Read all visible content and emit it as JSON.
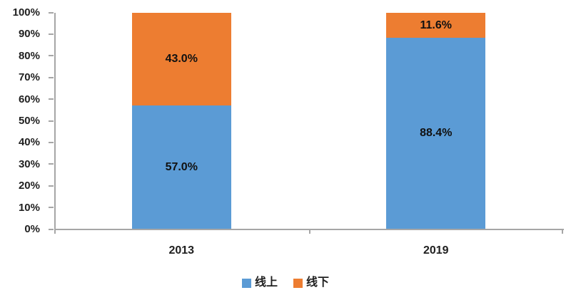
{
  "chart_data": {
    "type": "bar",
    "stacked": true,
    "title": "",
    "xlabel": "",
    "ylabel": "",
    "categories": [
      "2013",
      "2019"
    ],
    "series": [
      {
        "name": "线上",
        "color": "#5B9BD5",
        "values": [
          57.0,
          88.4
        ],
        "labels": [
          "57.0%",
          "88.4%"
        ]
      },
      {
        "name": "线下",
        "color": "#ED7D31",
        "values": [
          43.0,
          11.6
        ],
        "labels": [
          "43.0%",
          "11.6%"
        ]
      }
    ],
    "ylim": [
      0,
      100
    ],
    "ytick_step": 10,
    "ytick_labels": [
      "0%",
      "10%",
      "20%",
      "30%",
      "40%",
      "50%",
      "60%",
      "70%",
      "80%",
      "90%",
      "100%"
    ],
    "grid": false,
    "legend_position": "bottom",
    "legend_items": [
      {
        "label": "线上",
        "color": "#5B9BD5"
      },
      {
        "label": "线下",
        "color": "#ED7D31"
      }
    ],
    "axis_color": "#A6A6A6",
    "text_color": "#1F1F1F"
  }
}
